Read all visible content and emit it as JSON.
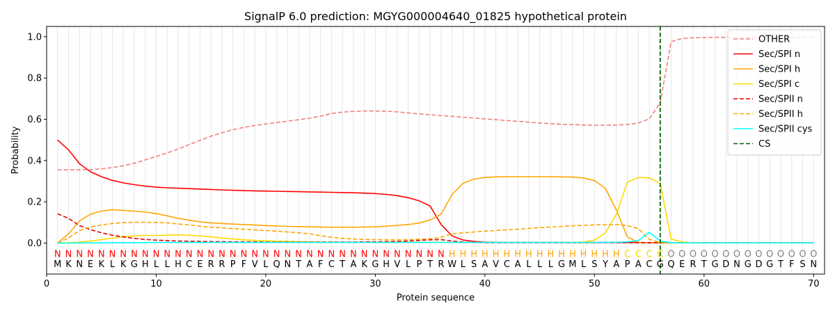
{
  "chart_data": {
    "type": "line",
    "title": "SignalP 6.0 prediction: MGYG000004640_01825 hypothetical protein",
    "xlabel": "Protein sequence",
    "ylabel": "Probability",
    "xlim": [
      0,
      71
    ],
    "ylim": [
      -0.15,
      1.05
    ],
    "x_ticks": [
      0,
      10,
      20,
      30,
      40,
      50,
      60,
      70
    ],
    "y_ticks": [
      0.0,
      0.2,
      0.4,
      0.6,
      0.8,
      1.0
    ],
    "x_tick_labels": [
      "0",
      "10",
      "20",
      "30",
      "40",
      "50",
      "60",
      "70"
    ],
    "y_tick_labels": [
      "0.0",
      "0.2",
      "0.4",
      "0.6",
      "0.8",
      "1.0"
    ],
    "grid": "vertical lines at each residue",
    "legend_position": "top-right",
    "sequence": [
      "M",
      "K",
      "N",
      "E",
      "K",
      "L",
      "K",
      "G",
      "H",
      "L",
      "L",
      "H",
      "C",
      "E",
      "R",
      "R",
      "P",
      "F",
      "V",
      "L",
      "Q",
      "N",
      "T",
      "A",
      "F",
      "C",
      "T",
      "A",
      "K",
      "G",
      "H",
      "V",
      "L",
      "P",
      "T",
      "R",
      "W",
      "L",
      "S",
      "A",
      "V",
      "C",
      "A",
      "L",
      "L",
      "L",
      "G",
      "M",
      "L",
      "S",
      "Y",
      "A",
      "P",
      "A",
      "C",
      "G",
      "Q",
      "E",
      "R",
      "T",
      "G",
      "D",
      "N",
      "G",
      "D",
      "G",
      "T",
      "F",
      "S",
      "N"
    ],
    "region_labels": [
      "N",
      "N",
      "N",
      "N",
      "N",
      "N",
      "N",
      "N",
      "N",
      "N",
      "N",
      "N",
      "N",
      "N",
      "N",
      "N",
      "N",
      "N",
      "N",
      "N",
      "N",
      "N",
      "N",
      "N",
      "N",
      "N",
      "N",
      "N",
      "N",
      "N",
      "N",
      "N",
      "N",
      "N",
      "N",
      "N",
      "H",
      "H",
      "H",
      "H",
      "H",
      "H",
      "H",
      "H",
      "H",
      "H",
      "H",
      "H",
      "H",
      "H",
      "H",
      "H",
      "C",
      "C",
      "C",
      "C",
      "O",
      "O",
      "O",
      "O",
      "O",
      "O",
      "O",
      "O",
      "O",
      "O",
      "O",
      "O",
      "O",
      "O"
    ],
    "region_colors": {
      "N": "#ff0000",
      "H": "#ffa500",
      "C": "#ffd700",
      "O": "#808080"
    },
    "cleavage_site": 56,
    "series": [
      {
        "name": "OTHER",
        "color": "#f08080",
        "dashed": true,
        "values": [
          0.355,
          0.355,
          0.355,
          0.356,
          0.36,
          0.366,
          0.375,
          0.387,
          0.403,
          0.42,
          0.437,
          0.456,
          0.477,
          0.498,
          0.518,
          0.535,
          0.549,
          0.561,
          0.57,
          0.577,
          0.584,
          0.591,
          0.598,
          0.605,
          0.615,
          0.628,
          0.635,
          0.638,
          0.64,
          0.64,
          0.639,
          0.636,
          0.631,
          0.626,
          0.622,
          0.618,
          0.614,
          0.61,
          0.606,
          0.602,
          0.598,
          0.594,
          0.59,
          0.586,
          0.582,
          0.579,
          0.576,
          0.574,
          0.572,
          0.571,
          0.571,
          0.572,
          0.575,
          0.582,
          0.602,
          0.68,
          0.976,
          0.992,
          0.995,
          0.996,
          0.997,
          0.997,
          0.997,
          0.997,
          0.997,
          0.997,
          0.997,
          0.997,
          0.997,
          0.997
        ]
      },
      {
        "name": "Sec/SPI n",
        "color": "#ff0000",
        "dashed": false,
        "values": [
          0.5,
          0.452,
          0.385,
          0.346,
          0.322,
          0.304,
          0.292,
          0.283,
          0.276,
          0.271,
          0.268,
          0.266,
          0.264,
          0.262,
          0.26,
          0.258,
          0.256,
          0.254,
          0.253,
          0.252,
          0.251,
          0.25,
          0.249,
          0.248,
          0.247,
          0.246,
          0.245,
          0.244,
          0.242,
          0.24,
          0.236,
          0.23,
          0.22,
          0.205,
          0.18,
          0.09,
          0.035,
          0.015,
          0.008,
          0.005,
          0.004,
          0.003,
          0.003,
          0.003,
          0.003,
          0.003,
          0.003,
          0.003,
          0.003,
          0.003,
          0.003,
          0.003,
          0.003,
          0.003,
          0.002,
          0.002,
          0.001,
          0.001,
          0.001,
          0.001,
          0.001,
          0.001,
          0.001,
          0.001,
          0.001,
          0.001,
          0.001,
          0.001,
          0.001,
          0.001
        ]
      },
      {
        "name": "Sec/SPI h",
        "color": "#ffa500",
        "dashed": false,
        "values": [
          0.0,
          0.045,
          0.108,
          0.14,
          0.155,
          0.162,
          0.158,
          0.155,
          0.15,
          0.143,
          0.132,
          0.12,
          0.111,
          0.103,
          0.098,
          0.095,
          0.092,
          0.09,
          0.088,
          0.085,
          0.083,
          0.081,
          0.08,
          0.079,
          0.078,
          0.077,
          0.077,
          0.077,
          0.078,
          0.079,
          0.082,
          0.086,
          0.09,
          0.097,
          0.112,
          0.14,
          0.235,
          0.29,
          0.31,
          0.318,
          0.321,
          0.322,
          0.322,
          0.322,
          0.322,
          0.322,
          0.321,
          0.32,
          0.316,
          0.303,
          0.265,
          0.16,
          0.03,
          0.003,
          0.001,
          0.001,
          0.001,
          0.001,
          0.001,
          0.001,
          0.001,
          0.001,
          0.001,
          0.001,
          0.001,
          0.001,
          0.001,
          0.001,
          0.001,
          0.001
        ]
      },
      {
        "name": "Sec/SPI c",
        "color": "#ffd700",
        "dashed": false,
        "values": [
          0.0,
          0.002,
          0.005,
          0.01,
          0.017,
          0.024,
          0.031,
          0.035,
          0.037,
          0.037,
          0.038,
          0.04,
          0.038,
          0.035,
          0.03,
          0.025,
          0.02,
          0.016,
          0.013,
          0.011,
          0.009,
          0.008,
          0.007,
          0.006,
          0.005,
          0.005,
          0.004,
          0.004,
          0.004,
          0.004,
          0.004,
          0.004,
          0.004,
          0.004,
          0.004,
          0.004,
          0.003,
          0.003,
          0.003,
          0.003,
          0.003,
          0.003,
          0.003,
          0.003,
          0.003,
          0.003,
          0.003,
          0.004,
          0.005,
          0.015,
          0.05,
          0.14,
          0.295,
          0.318,
          0.316,
          0.29,
          0.02,
          0.005,
          0.002,
          0.001,
          0.001,
          0.001,
          0.001,
          0.001,
          0.001,
          0.001,
          0.001,
          0.001,
          0.001,
          0.001
        ]
      },
      {
        "name": "Sec/SPII n",
        "color": "#e00000",
        "dashed": true,
        "values": [
          0.142,
          0.12,
          0.085,
          0.065,
          0.05,
          0.038,
          0.03,
          0.023,
          0.018,
          0.014,
          0.012,
          0.01,
          0.009,
          0.008,
          0.007,
          0.007,
          0.006,
          0.006,
          0.006,
          0.005,
          0.005,
          0.005,
          0.005,
          0.005,
          0.005,
          0.005,
          0.005,
          0.005,
          0.006,
          0.006,
          0.007,
          0.008,
          0.01,
          0.013,
          0.016,
          0.017,
          0.01,
          0.005,
          0.003,
          0.002,
          0.002,
          0.002,
          0.002,
          0.002,
          0.002,
          0.002,
          0.002,
          0.002,
          0.002,
          0.002,
          0.002,
          0.002,
          0.002,
          0.002,
          0.002,
          0.001,
          0.001,
          0.001,
          0.001,
          0.001,
          0.001,
          0.001,
          0.001,
          0.001,
          0.001,
          0.001,
          0.001,
          0.001,
          0.001,
          0.001
        ]
      },
      {
        "name": "Sec/SPII h",
        "color": "#ffa500",
        "dashed": true,
        "values": [
          0.0,
          0.025,
          0.06,
          0.078,
          0.088,
          0.095,
          0.099,
          0.101,
          0.101,
          0.1,
          0.098,
          0.093,
          0.088,
          0.082,
          0.077,
          0.074,
          0.07,
          0.067,
          0.064,
          0.061,
          0.058,
          0.054,
          0.05,
          0.045,
          0.036,
          0.028,
          0.023,
          0.02,
          0.018,
          0.017,
          0.016,
          0.016,
          0.017,
          0.019,
          0.021,
          0.028,
          0.045,
          0.05,
          0.054,
          0.058,
          0.061,
          0.064,
          0.067,
          0.071,
          0.075,
          0.078,
          0.081,
          0.084,
          0.086,
          0.088,
          0.089,
          0.09,
          0.085,
          0.07,
          0.018,
          0.003,
          0.001,
          0.001,
          0.001,
          0.001,
          0.001,
          0.001,
          0.001,
          0.001,
          0.001,
          0.001,
          0.001,
          0.001,
          0.001,
          0.001
        ]
      },
      {
        "name": "Sec/SPII cys",
        "color": "#00ffff",
        "dashed": false,
        "values": [
          0.0,
          0.0,
          0.001,
          0.001,
          0.001,
          0.002,
          0.002,
          0.002,
          0.002,
          0.003,
          0.003,
          0.003,
          0.003,
          0.003,
          0.003,
          0.003,
          0.003,
          0.003,
          0.003,
          0.003,
          0.003,
          0.003,
          0.003,
          0.003,
          0.003,
          0.003,
          0.003,
          0.003,
          0.003,
          0.003,
          0.003,
          0.003,
          0.003,
          0.003,
          0.003,
          0.003,
          0.003,
          0.003,
          0.003,
          0.003,
          0.003,
          0.003,
          0.003,
          0.003,
          0.003,
          0.003,
          0.003,
          0.003,
          0.003,
          0.003,
          0.003,
          0.004,
          0.006,
          0.012,
          0.052,
          0.01,
          0.002,
          0.001,
          0.001,
          0.001,
          0.001,
          0.001,
          0.001,
          0.001,
          0.001,
          0.001,
          0.001,
          0.001,
          0.001,
          0.001
        ]
      }
    ],
    "cs_series": {
      "name": "CS",
      "color": "#006400"
    }
  }
}
